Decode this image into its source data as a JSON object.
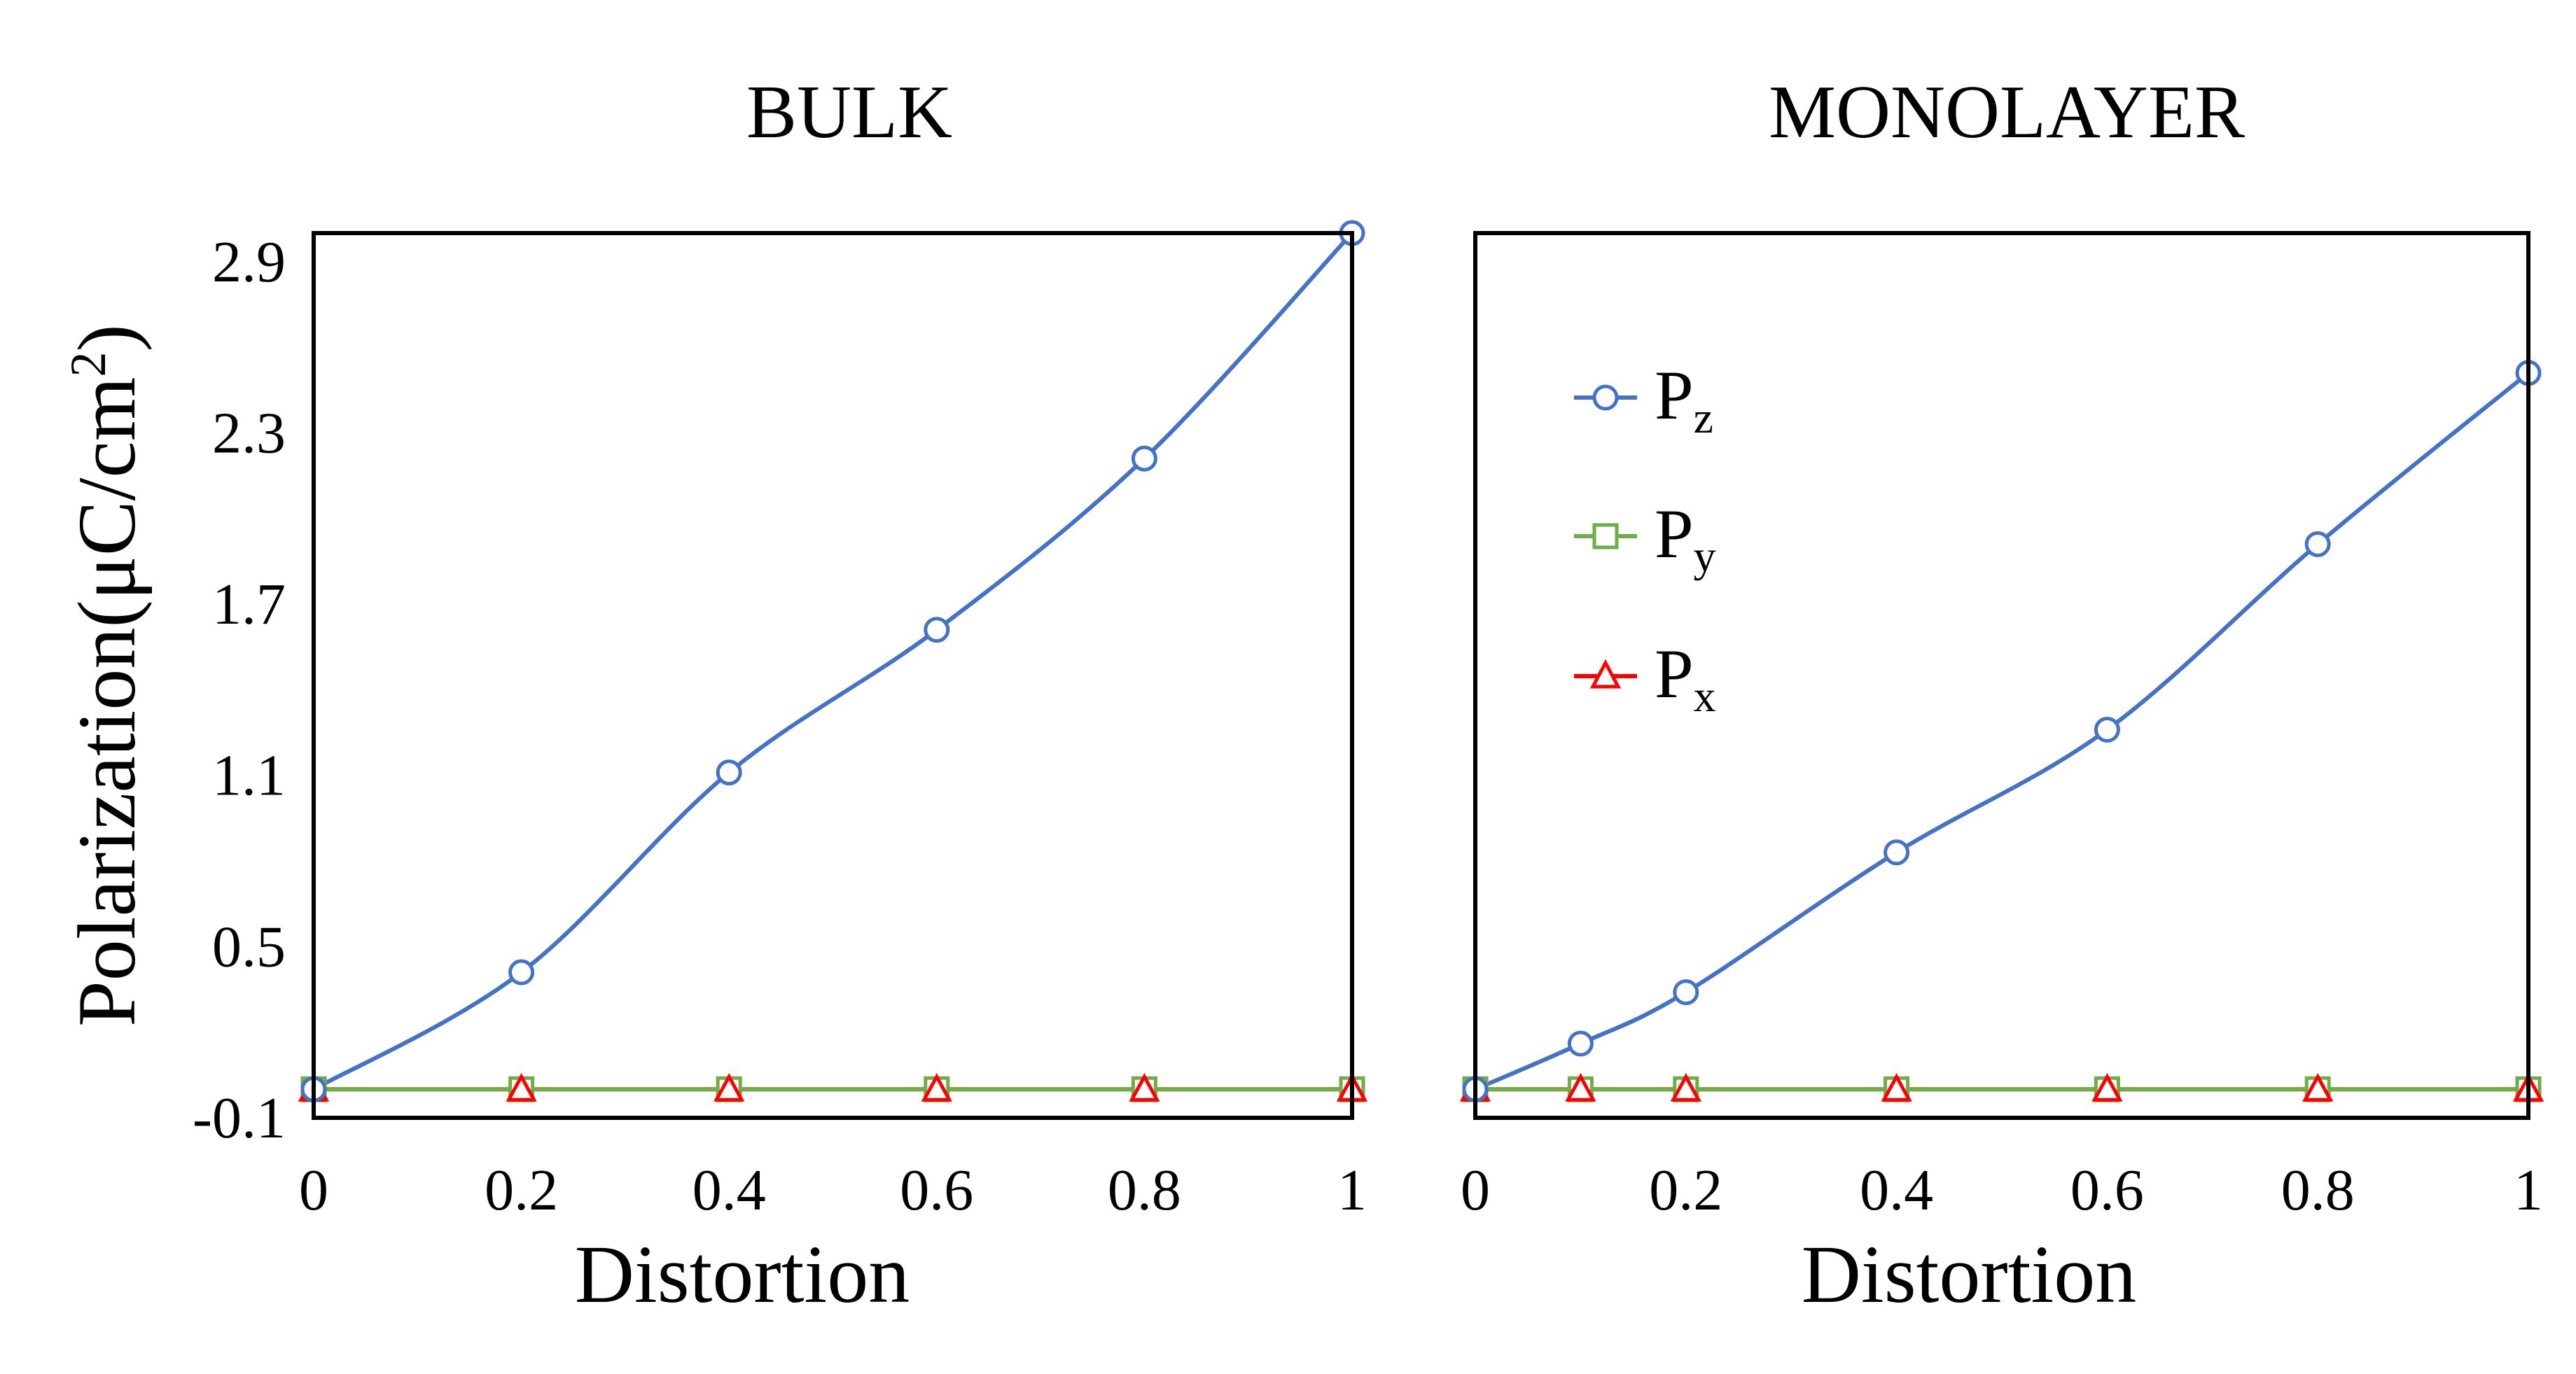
{
  "chart_data": [
    {
      "type": "line",
      "title": "BULK",
      "xlabel": "Distortion",
      "ylabel": "Polarization(μC/cm2)",
      "ylabel_parts": {
        "main": "Polarization(μC/cm",
        "superscript": "2",
        "close": ")"
      },
      "xlim": [
        0,
        1
      ],
      "ylim": [
        -0.1,
        3.0
      ],
      "x_ticks": [
        "0",
        "0.2",
        "0.4",
        "0.6",
        "0.8",
        "1"
      ],
      "y_ticks": [
        "-0.1",
        "0.5",
        "1.1",
        "1.7",
        "2.3",
        "2.9"
      ],
      "series": [
        {
          "name": "Pz",
          "marker": "circle",
          "color": "#4472C4",
          "x": [
            0,
            0.2,
            0.4,
            0.6,
            0.8,
            1
          ],
          "y": [
            0,
            0.41,
            1.11,
            1.61,
            2.21,
            3.0
          ]
        },
        {
          "name": "Py",
          "marker": "square",
          "color": "#70AD47",
          "x": [
            0,
            0.2,
            0.4,
            0.6,
            0.8,
            1
          ],
          "y": [
            0,
            0,
            0,
            0,
            0,
            0
          ]
        },
        {
          "name": "Px",
          "marker": "triangle",
          "color": "#FF0000",
          "x": [
            0,
            0.2,
            0.4,
            0.6,
            0.8,
            1
          ],
          "y": [
            0,
            0,
            0,
            0,
            0,
            0
          ]
        }
      ]
    },
    {
      "type": "line",
      "title": "MONOLAYER",
      "xlabel": "Distortion",
      "ylabel": "",
      "xlim": [
        0,
        1
      ],
      "ylim": [
        -0.1,
        3.0
      ],
      "x_ticks": [
        "0",
        "0.2",
        "0.4",
        "0.6",
        "0.8",
        "1"
      ],
      "y_ticks": [],
      "legend": {
        "placement": "top-left",
        "entries": [
          {
            "label": "P",
            "subscript": "z",
            "series": "Pz"
          },
          {
            "label": "P",
            "subscript": "y",
            "series": "Py"
          },
          {
            "label": "P",
            "subscript": "x",
            "series": "Px"
          }
        ]
      },
      "series": [
        {
          "name": "Pz",
          "marker": "circle",
          "color": "#4472C4",
          "x": [
            0,
            0.1,
            0.2,
            0.4,
            0.6,
            0.8,
            1
          ],
          "y": [
            0,
            0.16,
            0.34,
            0.83,
            1.26,
            1.91,
            2.51
          ]
        },
        {
          "name": "Py",
          "marker": "square",
          "color": "#70AD47",
          "x": [
            0,
            0.1,
            0.2,
            0.4,
            0.6,
            0.8,
            1
          ],
          "y": [
            0,
            0,
            0,
            0,
            0,
            0,
            0
          ]
        },
        {
          "name": "Px",
          "marker": "triangle",
          "color": "#FF0000",
          "x": [
            0,
            0.1,
            0.2,
            0.4,
            0.6,
            0.8,
            1
          ],
          "y": [
            0,
            0,
            0,
            0,
            0,
            0,
            0
          ]
        }
      ]
    }
  ]
}
